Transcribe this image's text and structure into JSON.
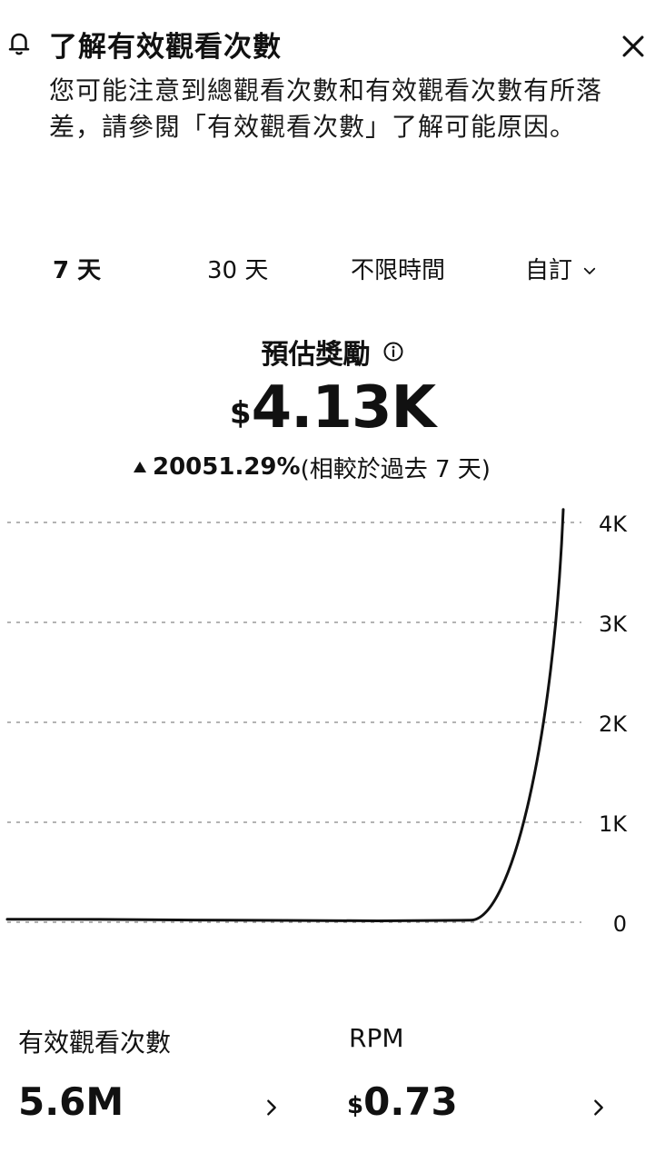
{
  "notice": {
    "title": "了解有效觀看次數",
    "body": "您可能注意到總觀看次數和有效觀看次數有所落差，請參閱「有效觀看次數」了解可能原因。",
    "icon": "bell-icon",
    "close_icon": "close-icon"
  },
  "tabs": [
    {
      "label": "7 天",
      "selected": true
    },
    {
      "label": "30 天",
      "selected": false
    },
    {
      "label": "不限時間",
      "selected": false
    },
    {
      "label": "自訂",
      "selected": false,
      "icon": "chevron-down-icon"
    }
  ],
  "metric": {
    "title": "預估獎勵",
    "info_icon": "info-icon",
    "currency": "$",
    "value": "4.13K",
    "change": {
      "direction": "up",
      "value": "20051.29%",
      "note": "(相較於過去 7 天)"
    }
  },
  "chart_data": {
    "type": "line",
    "y_ticks": [
      "4K",
      "3K",
      "2K",
      "1K",
      "0"
    ],
    "ylim": [
      0,
      4000
    ],
    "series": [
      {
        "values": [
          30,
          28,
          22,
          18,
          14,
          20,
          4130
        ]
      }
    ],
    "grid": true,
    "line_color": "#111111"
  },
  "stats": {
    "views": {
      "label": "有效觀看次數",
      "value": "5.6M"
    },
    "rpm": {
      "label": "RPM",
      "currency": "$",
      "value": "0.73"
    }
  }
}
